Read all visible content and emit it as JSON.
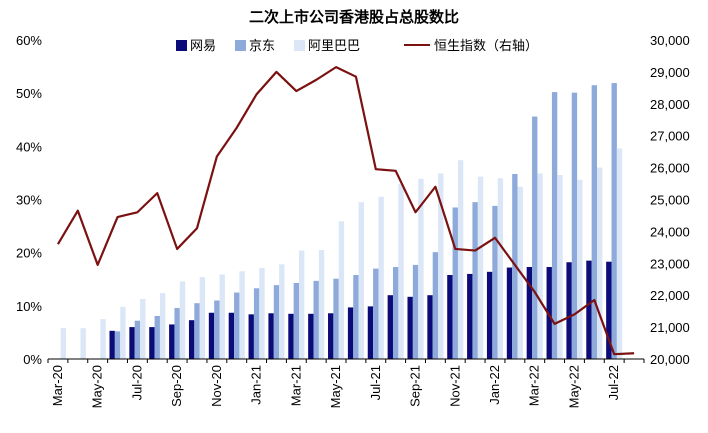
{
  "chart_data": {
    "type": "bar",
    "title": "二次上市公司香港股占总股数比",
    "xlabel": "",
    "ylabel": "",
    "categories": [
      "Mar-20",
      "Apr-20",
      "May-20",
      "Jun-20",
      "Jul-20",
      "Aug-20",
      "Sep-20",
      "Oct-20",
      "Nov-20",
      "Dec-20",
      "Jan-21",
      "Feb-21",
      "Mar-21",
      "Apr-21",
      "May-21",
      "Jun-21",
      "Jul-21",
      "Aug-21",
      "Sep-21",
      "Oct-21",
      "Nov-21",
      "Dec-21",
      "Jan-22",
      "Feb-22",
      "Mar-22",
      "Apr-22",
      "May-22",
      "Jun-22",
      "Jul-22",
      "Aug-22"
    ],
    "x_tick_labels": [
      "Mar-20",
      "May-20",
      "Jul-20",
      "Sep-20",
      "Nov-20",
      "Jan-21",
      "Mar-21",
      "May-21",
      "Jul-21",
      "Sep-21",
      "Nov-21",
      "Jan-22",
      "Mar-22",
      "May-22",
      "Jul-22"
    ],
    "ylim": [
      0,
      60
    ],
    "y_ticks": [
      "0%",
      "10%",
      "20%",
      "30%",
      "40%",
      "50%",
      "60%"
    ],
    "y2lim": [
      20000,
      30000
    ],
    "y2_ticks": [
      "20,000",
      "21,000",
      "22,000",
      "23,000",
      "24,000",
      "25,000",
      "26,000",
      "27,000",
      "28,000",
      "29,000",
      "30,000"
    ],
    "legend": {
      "position": "top"
    },
    "series": [
      {
        "name": "网易",
        "type": "bar",
        "axis": "left",
        "color": "#0b0b7a",
        "values": [
          null,
          null,
          null,
          5.3,
          6.0,
          6.0,
          6.5,
          7.3,
          8.7,
          8.7,
          8.4,
          8.6,
          8.5,
          8.5,
          8.6,
          9.7,
          9.9,
          12.0,
          11.7,
          12.0,
          15.8,
          16.0,
          16.4,
          17.2,
          17.3,
          17.3,
          18.2,
          18.5,
          18.3,
          null
        ]
      },
      {
        "name": "京东",
        "type": "bar",
        "axis": "left",
        "color": "#8eaadb",
        "values": [
          null,
          null,
          null,
          5.2,
          7.2,
          8.1,
          9.6,
          10.5,
          11.0,
          12.5,
          13.3,
          13.9,
          14.3,
          14.7,
          15.1,
          15.8,
          17.0,
          17.3,
          17.7,
          20.1,
          28.5,
          29.5,
          28.8,
          34.8,
          45.6,
          50.2,
          50.1,
          51.5,
          51.9,
          null
        ]
      },
      {
        "name": "阿里巴巴",
        "type": "bar",
        "axis": "left",
        "color": "#dbe6f6",
        "values": [
          5.8,
          5.8,
          7.5,
          9.8,
          11.3,
          12.4,
          14.6,
          15.4,
          15.9,
          16.5,
          17.1,
          17.8,
          20.4,
          20.5,
          25.9,
          29.5,
          30.5,
          32.9,
          33.9,
          34.9,
          37.4,
          34.3,
          34.0,
          32.4,
          34.9,
          34.6,
          33.7,
          36.0,
          39.6,
          null
        ]
      },
      {
        "name": "恒生指数（右轴）",
        "type": "line",
        "axis": "right",
        "color": "#7b1111",
        "values": [
          23600,
          24650,
          22950,
          24450,
          24600,
          25200,
          23450,
          24100,
          26350,
          27250,
          28300,
          29000,
          28400,
          28750,
          29150,
          28850,
          25950,
          25900,
          24600,
          25400,
          23450,
          23400,
          23800,
          22950,
          22100,
          21100,
          21400,
          21850,
          20150,
          20180
        ]
      }
    ]
  }
}
